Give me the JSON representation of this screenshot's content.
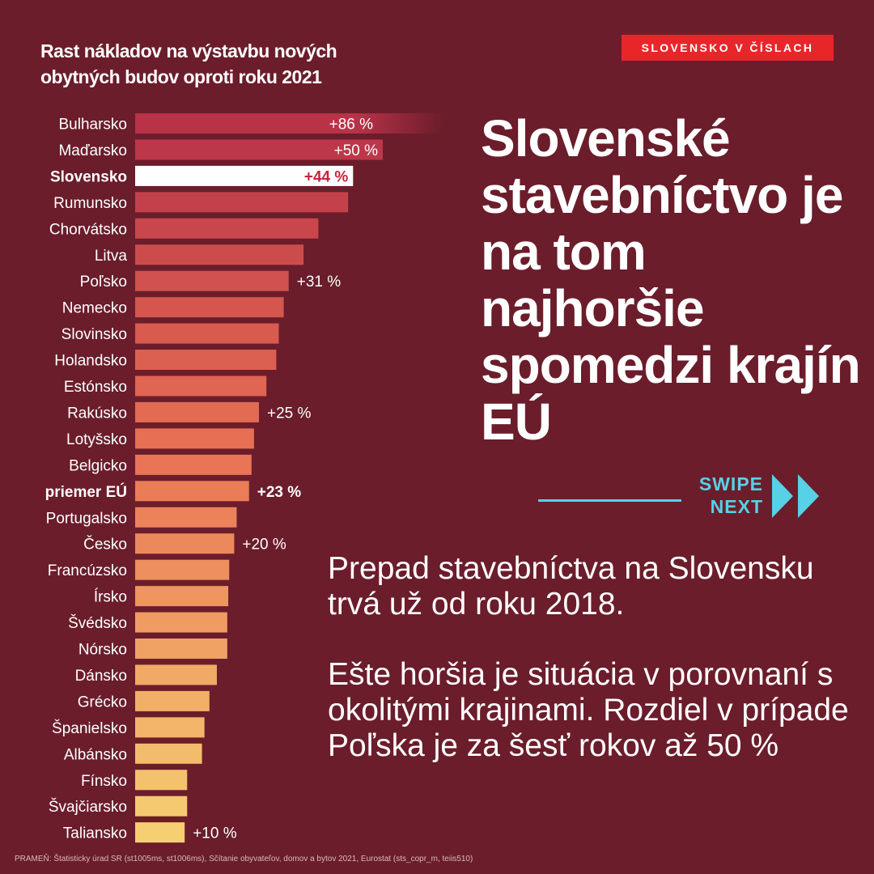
{
  "chart_title": "Rast nákladov na výstavbu nových obytných budov oproti roku 2021",
  "brand": "SLOVENSKO V ČÍSLACH",
  "headline": "Slovenské stavebníctvo je na tom najhoršie spomedzi krajín EÚ",
  "swipe": {
    "line1": "SWIPE",
    "line2": "NEXT"
  },
  "paragraph1": "Prepad stavebníctva na Slovensku trvá už od roku 2018.",
  "paragraph2": "Ešte horšia je situácia v porovnaní s okolitými krajinami. Rozdiel v prípade Poľska je za šesť rokov až 50 %",
  "source": "PRAMEŇ: Štatisticky úrad SR (st1005ms, st1006ms), Sčítanie obyvateľov, domov a bytov 2021, Eurostat (sts_copr_m, teiis510)",
  "colors": {
    "background": "#6b1d2b",
    "brand_red": "#e8262a",
    "accent_cyan": "#56d1e6",
    "bar_top": "#b83248",
    "bar_bottom": "#f6cf72",
    "highlight_bar": "#ffffff"
  },
  "chart_data": {
    "type": "bar",
    "orientation": "horizontal",
    "unit": "%",
    "categories": [
      "Bulharsko",
      "Maďarsko",
      "Slovensko",
      "Rumunsko",
      "Chorvátsko",
      "Litva",
      "Poľsko",
      "Nemecko",
      "Slovinsko",
      "Holandsko",
      "Estónsko",
      "Rakúsko",
      "Lotyšsko",
      "Belgicko",
      "priemer EÚ",
      "Portugalsko",
      "Česko",
      "Francúzsko",
      "Írsko",
      "Švédsko",
      "Nórsko",
      "Dánsko",
      "Grécko",
      "Španielsko",
      "Albánsko",
      "Fínsko",
      "Švajčiarsko",
      "Taliansko"
    ],
    "values": [
      86,
      50,
      44,
      43,
      37,
      34,
      31,
      30,
      29,
      28.5,
      26.5,
      25,
      24,
      23.5,
      23,
      20.5,
      20,
      19,
      18.8,
      18.6,
      18.6,
      16.5,
      15,
      14,
      13.5,
      10.5,
      10.5,
      10
    ],
    "data_labels": {
      "0": "+86 %",
      "1": "+50 %",
      "2": "+44 %",
      "6": "+31 %",
      "11": "+25 %",
      "14": "+23 %",
      "16": "+20 %",
      "27": "+10 %"
    },
    "highlight": [
      "Slovensko"
    ],
    "bold": [
      "Slovensko",
      "priemer EÚ"
    ]
  }
}
